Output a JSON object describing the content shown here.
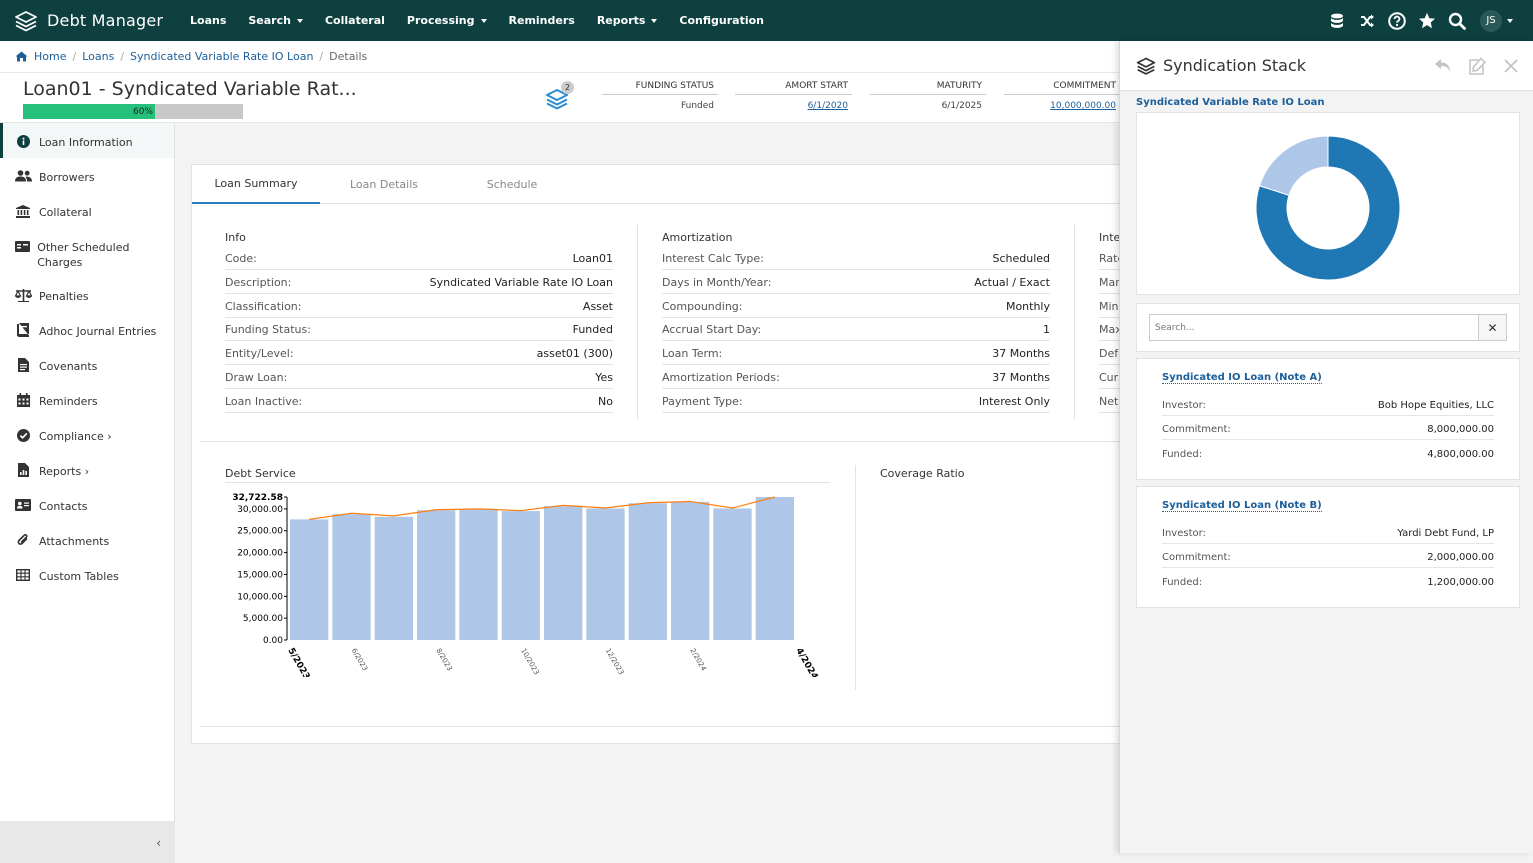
{
  "app": {
    "brand": "Debt Manager",
    "nav": [
      {
        "label": "Loans",
        "caret": false
      },
      {
        "label": "Search",
        "caret": true
      },
      {
        "label": "Collateral",
        "caret": false
      },
      {
        "label": "Processing",
        "caret": true
      },
      {
        "label": "Reminders",
        "caret": false
      },
      {
        "label": "Reports",
        "caret": true
      },
      {
        "label": "Configuration",
        "caret": false
      }
    ],
    "user_initials": "JS"
  },
  "breadcrumb": {
    "home": "Home",
    "loans": "Loans",
    "loan": "Syndicated Variable Rate IO Loan",
    "current": "Details"
  },
  "header": {
    "title": "Loan01 - Syndicated Variable Rat...",
    "progress_pct": 60,
    "progress_label": "60%",
    "stack_badge": "2",
    "stats": {
      "funding_status_label": "FUNDING STATUS",
      "funding_status_value": "Funded",
      "amort_start_label": "AMORT START",
      "amort_start_value": "6/1/2020",
      "maturity_label": "MATURITY",
      "maturity_value": "6/1/2025",
      "commitment_label": "COMMITMENT",
      "commitment_value": "10,000,000.00"
    }
  },
  "sidebar": {
    "items": [
      {
        "label": "Loan Information",
        "icon": "info-icon"
      },
      {
        "label": "Borrowers",
        "icon": "users-icon"
      },
      {
        "label": "Collateral",
        "icon": "bank-icon"
      },
      {
        "label": "Other Scheduled Charges",
        "icon": "card-icon"
      },
      {
        "label": "Penalties",
        "icon": "scale-icon"
      },
      {
        "label": "Adhoc Journal Entries",
        "icon": "book-icon"
      },
      {
        "label": "Covenants",
        "icon": "document-icon"
      },
      {
        "label": "Reminders",
        "icon": "calendar-icon"
      },
      {
        "label": "Compliance ›",
        "icon": "check-circle-icon"
      },
      {
        "label": "Reports ›",
        "icon": "report-icon"
      },
      {
        "label": "Contacts",
        "icon": "address-card-icon"
      },
      {
        "label": "Attachments",
        "icon": "paperclip-icon"
      },
      {
        "label": "Custom Tables",
        "icon": "table-icon"
      }
    ],
    "collapse": "‹"
  },
  "tabs": [
    "Loan Summary",
    "Loan Details",
    "Schedule"
  ],
  "info": {
    "title": "Info",
    "rows": [
      {
        "k": "Code:",
        "v": "Loan01"
      },
      {
        "k": "Description:",
        "v": "Syndicated Variable Rate IO Loan"
      },
      {
        "k": "Classification:",
        "v": "Asset"
      },
      {
        "k": "Funding Status:",
        "v": "Funded"
      },
      {
        "k": "Entity/Level:",
        "v": "asset01 (300)"
      },
      {
        "k": "Draw Loan:",
        "v": "Yes"
      },
      {
        "k": "Loan Inactive:",
        "v": "No"
      }
    ]
  },
  "amortization": {
    "title": "Amortization",
    "rows": [
      {
        "k": "Interest Calc Type:",
        "v": "Scheduled"
      },
      {
        "k": "Days in Month/Year:",
        "v": "Actual / Exact"
      },
      {
        "k": "Compounding:",
        "v": "Monthly"
      },
      {
        "k": "Accrual Start Day:",
        "v": "1"
      },
      {
        "k": "Loan Term:",
        "v": "37 Months"
      },
      {
        "k": "Amortization Periods:",
        "v": "37 Months"
      },
      {
        "k": "Payment Type:",
        "v": "Interest Only"
      }
    ]
  },
  "interest": {
    "title": "Inter",
    "rows": [
      "Rate",
      "Marg",
      "Mini",
      "Max",
      "Defa",
      "Curr",
      "Net"
    ]
  },
  "debt_service_title": "Debt Service",
  "coverage_ratio_title": "Coverage Ratio",
  "chart_data": {
    "type": "bar",
    "title": "Debt Service",
    "y_ticks": [
      "32,722.58",
      "30,000.00",
      "25,000.00",
      "20,000.00",
      "15,000.00",
      "10,000.00",
      "5,000.00",
      "0.00"
    ],
    "y_tick_values": [
      32722.58,
      30000,
      25000,
      20000,
      15000,
      10000,
      5000,
      0
    ],
    "ylim": [
      0,
      32722.58
    ],
    "x_tick_labels": [
      {
        "label": "5/2023",
        "index": 0,
        "bold": true
      },
      {
        "label": "6/2023",
        "index": 1,
        "bold": false
      },
      {
        "label": "8/2023",
        "index": 3,
        "bold": false
      },
      {
        "label": "10/2023",
        "index": 5,
        "bold": false
      },
      {
        "label": "12/2023",
        "index": 7,
        "bold": false
      },
      {
        "label": "2/2024",
        "index": 9,
        "bold": false
      },
      {
        "label": "4/2024",
        "index": 11,
        "bold": true
      }
    ],
    "bars": [
      27600,
      28800,
      28200,
      29700,
      29900,
      29500,
      30600,
      30100,
      31300,
      31600,
      30100,
      32722.58
    ],
    "line": [
      27600,
      29000,
      28400,
      29800,
      30000,
      29600,
      30800,
      30200,
      31400,
      31700,
      30200,
      32722.58
    ],
    "bar_color": "#aec7e8",
    "line_color": "#ff7f0e"
  },
  "drawer": {
    "title": "Syndication Stack",
    "subtitle": "Syndicated Variable Rate IO Loan",
    "donut": [
      {
        "name": "Syndicated IO Loan (Note A)",
        "value": 8000000,
        "color": "#1f77b4"
      },
      {
        "name": "Syndicated IO Loan (Note B)",
        "value": 2000000,
        "color": "#aec7e8"
      }
    ],
    "search_placeholder": "Search...",
    "search_clear": "✕",
    "notes": [
      {
        "title": "Syndicated IO Loan (Note A)",
        "investor_label": "Investor:",
        "investor": "Bob Hope Equities, LLC",
        "commitment_label": "Commitment:",
        "commitment": "8,000,000.00",
        "funded_label": "Funded:",
        "funded": "4,800,000.00"
      },
      {
        "title": "Syndicated IO Loan (Note B)",
        "investor_label": "Investor:",
        "investor": "Yardi Debt Fund, LP",
        "commitment_label": "Commitment:",
        "commitment": "2,000,000.00",
        "funded_label": "Funded:",
        "funded": "1,200,000.00"
      }
    ]
  }
}
